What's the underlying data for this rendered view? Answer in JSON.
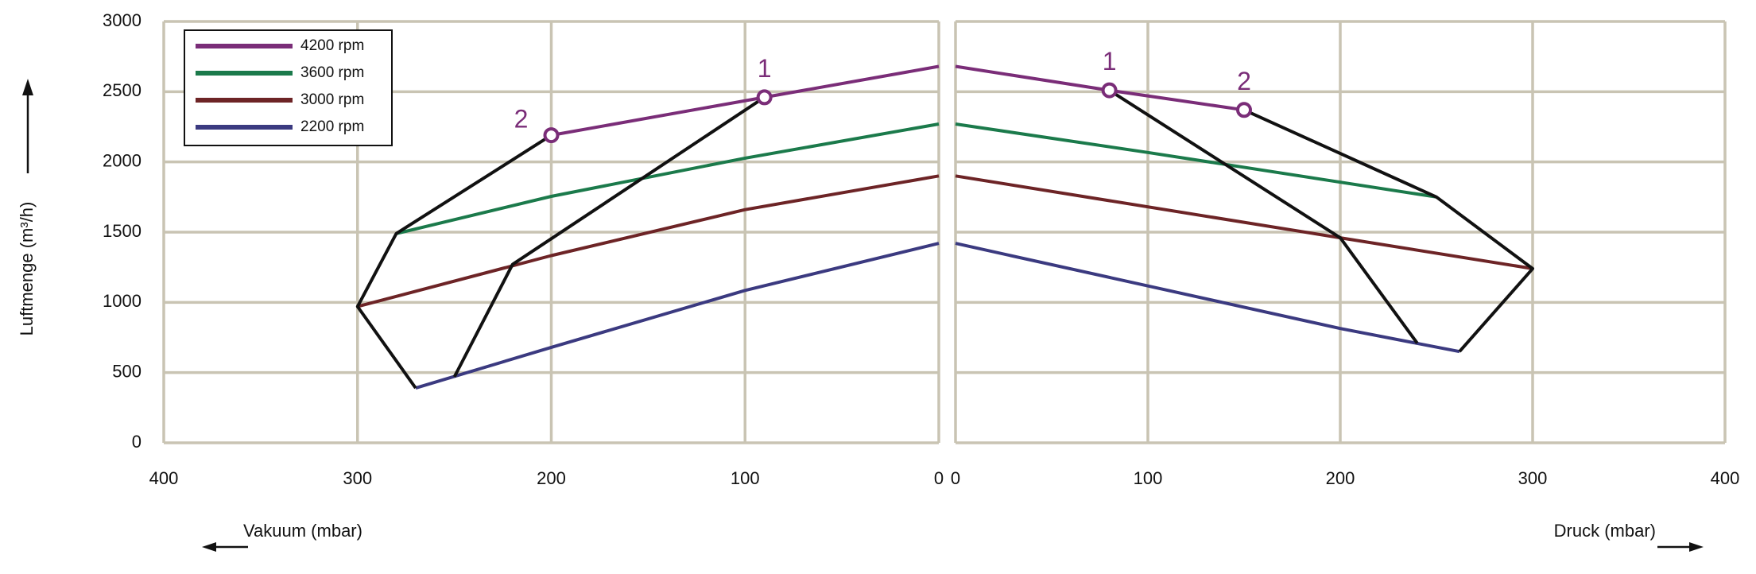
{
  "chart_data": [
    {
      "type": "line",
      "ylabel": "Luftmenge (m³/h)",
      "xlabel": "Vakuum (mbar)",
      "reversed": true,
      "xlim": [
        400,
        0
      ],
      "xticks": [
        400,
        300,
        200,
        100,
        0
      ],
      "ylim": [
        0,
        3000
      ],
      "yticks": [
        0,
        500,
        1000,
        1500,
        2000,
        2500,
        3000
      ],
      "grid": true,
      "legend": "upper left",
      "series": [
        {
          "name": "4200 rpm",
          "color": "#7a2d78",
          "x": [
            200,
            90,
            0
          ],
          "values": [
            2190,
            2460,
            2680
          ]
        },
        {
          "name": "3600 rpm",
          "color": "#1b7a4b",
          "x": [
            280,
            200,
            100,
            0
          ],
          "values": [
            1490,
            1755,
            2027,
            2270
          ]
        },
        {
          "name": "3000 rpm",
          "color": "#6d2426",
          "x": [
            300,
            200,
            100,
            0
          ],
          "values": [
            970,
            1333,
            1660,
            1900
          ]
        },
        {
          "name": "2200 rpm",
          "color": "#3b3a80",
          "x": [
            270,
            200,
            100,
            0
          ],
          "values": [
            390,
            680,
            1085,
            1420
          ]
        }
      ],
      "envelopes": [
        {
          "color": "#111111",
          "x": [
            200,
            280,
            300,
            270
          ],
          "values": [
            2190,
            1490,
            970,
            390
          ]
        },
        {
          "color": "#111111",
          "x": [
            90,
            220,
            250
          ],
          "values": [
            2460,
            1270,
            470
          ]
        }
      ],
      "markers": [
        {
          "label": "1",
          "x": 90,
          "y": 2460,
          "color": "#7a2d78"
        },
        {
          "label": "2",
          "x": 200,
          "y": 2190,
          "color": "#7a2d78"
        }
      ]
    },
    {
      "type": "line",
      "xlabel": "Druck (mbar)",
      "xlim": [
        0,
        400
      ],
      "xticks": [
        0,
        100,
        200,
        300,
        400
      ],
      "ylim": [
        0,
        3000
      ],
      "yticks": [
        0,
        500,
        1000,
        1500,
        2000,
        2500,
        3000
      ],
      "grid": true,
      "series": [
        {
          "color": "#7a2d78",
          "x": [
            0,
            80,
            150
          ],
          "values": [
            2680,
            2510,
            2370
          ]
        },
        {
          "color": "#1b7a4b",
          "x": [
            0,
            100,
            250
          ],
          "values": [
            2270,
            2067,
            1750
          ]
        },
        {
          "color": "#6d2426",
          "x": [
            0,
            200,
            300
          ],
          "values": [
            1900,
            1460,
            1240
          ]
        },
        {
          "color": "#3b3a80",
          "x": [
            0,
            200,
            262
          ],
          "values": [
            1420,
            814,
            650
          ]
        }
      ],
      "envelopes": [
        {
          "color": "#111111",
          "x": [
            80,
            200,
            240
          ],
          "values": [
            2510,
            1460,
            710
          ]
        },
        {
          "color": "#111111",
          "x": [
            150,
            250,
            300,
            262
          ],
          "values": [
            2370,
            1750,
            1240,
            650
          ]
        }
      ],
      "markers": [
        {
          "label": "1",
          "x": 80,
          "y": 2510,
          "color": "#7a2d78"
        },
        {
          "label": "2",
          "x": 150,
          "y": 2370,
          "color": "#7a2d78"
        }
      ]
    }
  ]
}
